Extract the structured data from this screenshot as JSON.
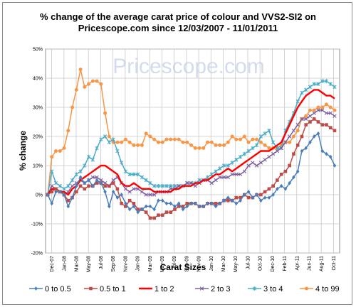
{
  "chart_data": {
    "type": "line",
    "title": "% change of the average carat price of  colour and VVS2-SI2  on Pricescope.com since 12/03/2007 - 11/01/2011",
    "title_lines": [
      "% change of the average carat price of  colour and VVS2-SI2  on",
      "Pricescope.com since 12/03/2007 - 11/01/2011"
    ],
    "watermark": "Pricescope.com",
    "xlabel": "Carat Sizes",
    "ylabel": "% change",
    "ylim": [
      -20,
      50
    ],
    "y_ticks": [
      "-20%",
      "-10%",
      "0%",
      "10%",
      "20%",
      "30%",
      "40%",
      "50%"
    ],
    "x_tick_labels": [
      "Dec-07",
      "Jan-08",
      "Mar-08",
      "May-08",
      "Jul-08",
      "Sep-08",
      "Nov-08",
      "Jan-09",
      "Mar-09",
      "May-09",
      "Jul-09",
      "Sep-09",
      "Nov-09",
      "Jan-10",
      "Mar-10",
      "May-10",
      "Jul-10",
      "Oct-10",
      "Dec-10",
      "Feb-11",
      "Apr-11",
      "Jun-11",
      "Aug-11",
      "Oct-11"
    ],
    "grid": true,
    "legend_position": "bottom",
    "series": [
      {
        "name": "0 to 0.5",
        "color": "#4a7ebb",
        "marker": "diamond",
        "values": [
          0,
          -3,
          1,
          1,
          0,
          -4,
          -1,
          3,
          6,
          4,
          5,
          3,
          5,
          4,
          1,
          -4,
          1,
          -1,
          0,
          -3,
          -5,
          -4,
          -6,
          -5,
          -4,
          -4,
          -5,
          -2,
          -2,
          -3,
          -3,
          -4,
          -3,
          -5,
          -4,
          -3,
          -3,
          -4,
          -4,
          -3,
          -3,
          -4,
          -3,
          -2,
          -1,
          -2,
          -3,
          -2,
          0,
          1,
          -1,
          0,
          -2,
          -1,
          -1,
          0,
          2,
          3,
          2,
          4,
          6,
          8,
          15,
          16,
          18,
          20,
          21,
          15,
          14,
          13,
          10
        ]
      },
      {
        "name": "0.5 to 1",
        "color": "#be4b48",
        "marker": "square",
        "values": [
          0,
          1,
          2,
          1,
          0,
          -2,
          -1,
          1,
          3,
          2,
          3,
          3,
          4,
          4,
          3,
          3,
          4,
          2,
          -3,
          -4,
          -2,
          -3,
          -5,
          -5,
          -6,
          -8,
          -8,
          -7,
          -7,
          -6,
          -6,
          -5,
          -4,
          -4,
          -3,
          -3,
          -3,
          -4,
          -4,
          -3,
          -3,
          -3,
          -3,
          -2,
          -2,
          -2,
          -1,
          -1,
          0,
          -1,
          -1,
          0,
          0,
          1,
          2,
          3,
          5,
          7,
          8,
          10,
          14,
          17,
          20,
          24,
          25,
          26,
          25,
          24,
          24,
          23,
          22
        ]
      },
      {
        "name": "1 to 2",
        "color": "#ff0000",
        "marker": "none",
        "values": [
          0,
          2,
          2,
          1,
          1,
          0,
          2,
          3,
          5,
          6,
          7,
          8,
          9,
          10,
          10,
          9,
          8,
          7,
          4,
          3,
          3,
          4,
          3,
          2,
          2,
          2,
          1,
          1,
          1,
          1,
          1,
          2,
          2,
          3,
          3,
          3,
          4,
          4,
          5,
          5,
          6,
          7,
          7,
          8,
          9,
          8,
          9,
          10,
          11,
          12,
          13,
          14,
          15,
          15,
          15,
          16,
          17,
          18,
          21,
          24,
          27,
          30,
          32,
          34,
          35,
          36,
          36,
          35,
          34,
          34,
          33
        ]
      },
      {
        "name": "2 to 3",
        "color": "#7d60a0",
        "marker": "x",
        "values": [
          0,
          3,
          2,
          1,
          0,
          1,
          3,
          4,
          5,
          4,
          5,
          6,
          6,
          5,
          4,
          3,
          5,
          6,
          4,
          2,
          1,
          2,
          2,
          1,
          0,
          0,
          0,
          1,
          1,
          1,
          2,
          2,
          3,
          3,
          4,
          4,
          3,
          4,
          5,
          5,
          4,
          5,
          6,
          6,
          6,
          7,
          7,
          7,
          8,
          10,
          11,
          10,
          11,
          12,
          13,
          14,
          15,
          16,
          18,
          20,
          22,
          24,
          26,
          26,
          27,
          28,
          29,
          29,
          28,
          28,
          27
        ]
      },
      {
        "name": "3 to 4",
        "color": "#4bacc6",
        "marker": "star",
        "values": [
          0,
          8,
          4,
          3,
          2,
          3,
          5,
          7,
          8,
          10,
          13,
          12,
          16,
          19,
          20,
          18,
          19,
          15,
          11,
          8,
          7,
          7,
          7,
          6,
          5,
          4,
          3,
          3,
          3,
          3,
          3,
          3,
          3,
          3,
          4,
          4,
          4,
          5,
          5,
          6,
          7,
          8,
          9,
          10,
          10,
          11,
          12,
          13,
          14,
          15,
          16,
          17,
          20,
          21,
          22,
          18,
          16,
          16,
          22,
          25,
          28,
          32,
          35,
          36,
          37,
          38,
          38,
          39,
          39,
          38,
          37
        ]
      },
      {
        "name": "4 to 99",
        "color": "#f79646",
        "marker": "circle",
        "values": [
          0,
          13,
          15,
          15,
          16,
          22,
          30,
          36,
          43,
          37,
          38,
          39,
          39,
          38,
          28,
          20,
          18,
          18,
          18,
          19,
          18,
          17,
          17,
          17,
          21,
          20,
          19,
          18,
          18,
          19,
          19,
          19,
          19,
          18,
          18,
          17,
          16,
          16,
          16,
          18,
          18,
          17,
          17,
          17,
          18,
          20,
          19,
          19,
          20,
          18,
          19,
          19,
          18,
          17,
          16,
          16,
          16,
          17,
          18,
          18,
          20,
          22,
          26,
          27,
          29,
          29,
          30,
          30,
          31,
          30,
          29
        ]
      }
    ]
  }
}
